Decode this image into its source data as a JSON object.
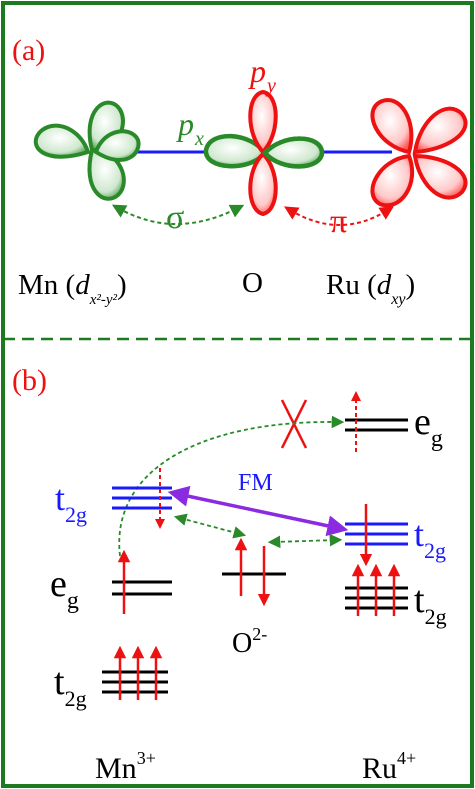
{
  "colors": {
    "frame": "#1e7a1e",
    "green": "#2a8a2a",
    "red": "#ee1111",
    "blue": "#1a1aff",
    "purple": "#8a2be2",
    "black": "#000000"
  },
  "panel_a": {
    "label": "(a)",
    "py_main": "p",
    "py_sub": "y",
    "px_main": "p",
    "px_sub": "x",
    "sigma": "σ",
    "pi": "π",
    "mn_text": "Mn (",
    "mn_d": "d",
    "mn_sub": "x²-y²",
    "mn_close": ")",
    "o_text": "O",
    "ru_text": "Ru (",
    "ru_d": "d",
    "ru_sub": "xy",
    "ru_close": ")"
  },
  "panel_b": {
    "label": "(b)",
    "fm": "FM",
    "mn_t2g_main": "t",
    "mn_t2g_sub": "2g",
    "mn_eg_main": "e",
    "mn_eg_sub": "g",
    "mn_t2g_low_main": "t",
    "mn_t2g_low_sub": "2g",
    "ru_eg_main": "e",
    "ru_eg_sub": "g",
    "ru_t2g_main": "t",
    "ru_t2g_sub": "2g",
    "ru_t2g_low_main": "t",
    "ru_t2g_low_sub": "2g",
    "o_main": "O",
    "o_sup": "2-",
    "mn_ion_main": "Mn",
    "mn_ion_sup": "3+",
    "ru_ion_main": "Ru",
    "ru_ion_sup": "4+"
  }
}
